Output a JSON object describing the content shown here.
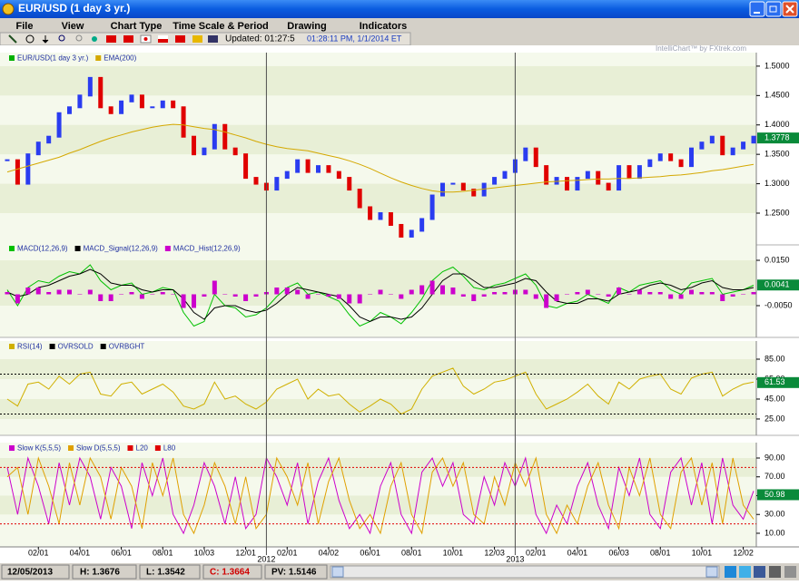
{
  "window": {
    "title": "EUR/USD (1 day  3 yr.)"
  },
  "menu": [
    "File",
    "View",
    "Chart Type",
    "Time Scale & Period",
    "Drawing",
    "Indicators"
  ],
  "toolbar": {
    "updated": "Updated: 01:27:5",
    "time": "01:28:11 PM, 1/1/2014 ET"
  },
  "watermark": "IntelliChart™ by FXtrek.com",
  "status": {
    "date": "12/05/2013",
    "high": "H: 1.3676",
    "low": "L: 1.3542",
    "close": "C: 1.3664",
    "pv": "PV: 1.5146"
  },
  "chart_data": [
    {
      "type": "line",
      "ylim": [
        1.196,
        1.523
      ],
      "yticks": [
        {
          "value": 1.5,
          "label": "1.5000"
        },
        {
          "value": 1.45,
          "label": "1.4500"
        },
        {
          "value": 1.4,
          "label": "1.4000"
        },
        {
          "value": 1.35,
          "label": "1.3500"
        },
        {
          "value": 1.3,
          "label": "1.3000"
        },
        {
          "value": 1.25,
          "label": "1.2500"
        }
      ],
      "last_value": 1.3778,
      "series": [
        {
          "name": "EUR/USD(1 day 3 yr.)",
          "color": "#00b000",
          "style": "candle",
          "up_color": "#2a3cf0",
          "down_color": "#e00000",
          "values": [
            1.34,
            1.3,
            1.35,
            1.37,
            1.38,
            1.42,
            1.43,
            1.45,
            1.48,
            1.43,
            1.42,
            1.44,
            1.45,
            1.43,
            1.43,
            1.44,
            1.43,
            1.38,
            1.35,
            1.36,
            1.4,
            1.36,
            1.35,
            1.31,
            1.3,
            1.29,
            1.31,
            1.32,
            1.34,
            1.32,
            1.33,
            1.32,
            1.31,
            1.29,
            1.26,
            1.24,
            1.25,
            1.23,
            1.21,
            1.22,
            1.24,
            1.28,
            1.3,
            1.3,
            1.29,
            1.28,
            1.3,
            1.31,
            1.32,
            1.34,
            1.36,
            1.33,
            1.3,
            1.31,
            1.29,
            1.31,
            1.32,
            1.3,
            1.29,
            1.33,
            1.31,
            1.33,
            1.34,
            1.35,
            1.34,
            1.33,
            1.36,
            1.37,
            1.38,
            1.35,
            1.36,
            1.37,
            1.38
          ]
        },
        {
          "name": "EMA(200)",
          "color": "#d4a800",
          "style": "line",
          "values": [
            1.32,
            1.325,
            1.33,
            1.335,
            1.34,
            1.345,
            1.352,
            1.358,
            1.365,
            1.372,
            1.378,
            1.383,
            1.388,
            1.392,
            1.396,
            1.399,
            1.401,
            1.4,
            1.397,
            1.394,
            1.392,
            1.388,
            1.383,
            1.378,
            1.372,
            1.367,
            1.363,
            1.36,
            1.358,
            1.356,
            1.352,
            1.348,
            1.344,
            1.339,
            1.333,
            1.326,
            1.318,
            1.31,
            1.303,
            1.297,
            1.292,
            1.288,
            1.286,
            1.286,
            1.287,
            1.289,
            1.291,
            1.293,
            1.295,
            1.297,
            1.299,
            1.301,
            1.303,
            1.304,
            1.305,
            1.306,
            1.307,
            1.308,
            1.308,
            1.309,
            1.309,
            1.31,
            1.311,
            1.312,
            1.314,
            1.315,
            1.317,
            1.319,
            1.322,
            1.324,
            1.327,
            1.33,
            1.333
          ]
        }
      ]
    },
    {
      "type": "line",
      "ylim": [
        -0.019,
        0.0226
      ],
      "yticks": [
        {
          "value": 0.015,
          "label": "0.0150"
        },
        {
          "value": -0.005,
          "label": "-0.0050"
        }
      ],
      "last_value": 0.0041,
      "series": [
        {
          "name": "MACD(12,26,9)",
          "color": "#00c000",
          "style": "line",
          "values": [
            0.002,
            -0.005,
            0.003,
            0.006,
            0.005,
            0.008,
            0.01,
            0.009,
            0.013,
            0.006,
            0.002,
            0.004,
            0.005,
            0,
            0.001,
            0.003,
            0.002,
            -0.008,
            -0.014,
            -0.012,
            0,
            -0.005,
            -0.006,
            -0.01,
            -0.009,
            -0.006,
            -0.001,
            0.003,
            0.005,
            0,
            0.001,
            -0.001,
            -0.003,
            -0.009,
            -0.014,
            -0.012,
            -0.008,
            -0.01,
            -0.013,
            -0.008,
            -0.002,
            0.006,
            0.01,
            0.012,
            0.008,
            0.003,
            0.002,
            0.004,
            0.005,
            0.007,
            0.009,
            0.004,
            -0.005,
            -0.006,
            -0.004,
            -0.003,
            0,
            -0.002,
            -0.004,
            0.003,
            0.001,
            0.004,
            0.005,
            0.006,
            0.002,
            0,
            0.005,
            0.006,
            0.007,
            0,
            0.001,
            0.002,
            0.004
          ]
        },
        {
          "name": "MACD_Signal(12,26,9)",
          "color": "#000000",
          "style": "line",
          "values": [
            0.001,
            -0.001,
            0,
            0.003,
            0.004,
            0.006,
            0.008,
            0.009,
            0.011,
            0.009,
            0.005,
            0.004,
            0.004,
            0.002,
            0.001,
            0.002,
            0.002,
            -0.002,
            -0.008,
            -0.011,
            -0.006,
            -0.005,
            -0.005,
            -0.007,
            -0.008,
            -0.007,
            -0.004,
            0,
            0.003,
            0.002,
            0.001,
            0,
            -0.001,
            -0.005,
            -0.01,
            -0.012,
            -0.01,
            -0.01,
            -0.011,
            -0.01,
            -0.006,
            0,
            0.006,
            0.009,
            0.009,
            0.006,
            0.003,
            0.003,
            0.004,
            0.005,
            0.007,
            0.006,
            0.001,
            -0.003,
            -0.004,
            -0.004,
            -0.002,
            -0.002,
            -0.003,
            0,
            0.001,
            0.002,
            0.004,
            0.005,
            0.004,
            0.002,
            0.003,
            0.005,
            0.006,
            0.003,
            0.002,
            0.002,
            0.003
          ]
        },
        {
          "name": "MACD_Hist(12,26,9)",
          "color": "#cc00cc",
          "style": "histogram",
          "values": [
            0.001,
            -0.004,
            0.003,
            0.003,
            0.001,
            0.002,
            0.002,
            0,
            0.002,
            -0.003,
            -0.003,
            0,
            0.001,
            -0.002,
            0,
            0.001,
            0,
            -0.006,
            -0.006,
            -0.001,
            0.006,
            0,
            -0.001,
            -0.003,
            -0.001,
            0.001,
            0.003,
            0.003,
            0.002,
            -0.002,
            0,
            -0.001,
            -0.002,
            -0.004,
            -0.004,
            0,
            0.002,
            0,
            -0.002,
            0.002,
            0.004,
            0.006,
            0.004,
            0.003,
            -0.001,
            -0.003,
            -0.001,
            0.001,
            0.001,
            0.002,
            0.002,
            -0.002,
            -0.006,
            -0.003,
            0,
            0.001,
            0.002,
            0,
            -0.001,
            0.003,
            0,
            0.002,
            0.001,
            0.001,
            -0.002,
            -0.002,
            0.002,
            0.001,
            0.001,
            -0.003,
            -0.001,
            0,
            0.001
          ]
        }
      ]
    },
    {
      "type": "line",
      "ylim": [
        8.6,
        103.2
      ],
      "yticks": [
        {
          "value": 85,
          "label": "85.00"
        },
        {
          "value": 65,
          "label": "65.00"
        },
        {
          "value": 45,
          "label": "45.00"
        },
        {
          "value": 25,
          "label": "25.00"
        }
      ],
      "last_value": 61.53,
      "series": [
        {
          "name": "RSI(14)",
          "color": "#d0b000",
          "style": "line",
          "values": [
            45,
            38,
            60,
            62,
            55,
            68,
            60,
            70,
            72,
            50,
            48,
            60,
            62,
            50,
            55,
            60,
            52,
            38,
            35,
            40,
            62,
            45,
            48,
            40,
            35,
            42,
            55,
            60,
            65,
            45,
            55,
            48,
            50,
            40,
            32,
            38,
            45,
            40,
            30,
            35,
            55,
            68,
            72,
            76,
            58,
            50,
            55,
            62,
            64,
            68,
            72,
            50,
            35,
            40,
            45,
            52,
            60,
            48,
            40,
            62,
            55,
            65,
            68,
            70,
            55,
            50,
            66,
            70,
            72,
            48,
            55,
            60,
            62
          ]
        },
        {
          "name": "OVRSOLD",
          "color": "#000000",
          "style": "level",
          "level": 30
        },
        {
          "name": "OVRBGHT",
          "color": "#000000",
          "style": "level",
          "level": 70
        }
      ]
    },
    {
      "type": "line",
      "ylim": [
        -4.5,
        106.4
      ],
      "yticks": [
        {
          "value": 90,
          "label": "90.00"
        },
        {
          "value": 70,
          "label": "70.00"
        },
        {
          "value": 50,
          "label": "50.00"
        },
        {
          "value": 30,
          "label": "30.00"
        },
        {
          "value": 10,
          "label": "10.00"
        }
      ],
      "last_value": 50.98,
      "categories": [
        null,
        null,
        null,
        "02/01",
        null,
        null,
        null,
        "04/01",
        null,
        null,
        null,
        "06/01",
        null,
        null,
        null,
        "08/01",
        null,
        null,
        null,
        "10/03",
        null,
        null,
        null,
        "12/01",
        null,
        null,
        null,
        "02/01",
        null,
        null,
        null,
        "04/02",
        null,
        null,
        null,
        "06/01",
        null,
        null,
        null,
        "08/01",
        null,
        null,
        null,
        "10/01",
        null,
        null,
        null,
        "12/03",
        null,
        null,
        null,
        "02/01",
        null,
        null,
        null,
        "04/01",
        null,
        null,
        null,
        "06/03",
        null,
        null,
        null,
        "08/01",
        null,
        null,
        null,
        "10/01",
        null,
        null,
        null,
        "12/02",
        null
      ],
      "xticks": [
        {
          "value": 25,
          "label": "2012"
        },
        {
          "value": 49,
          "label": "2013"
        }
      ],
      "series": [
        {
          "name": "Slow K(5,5,5)",
          "color": "#cc00cc",
          "style": "line",
          "values": [
            80,
            30,
            90,
            60,
            20,
            85,
            40,
            90,
            70,
            25,
            80,
            60,
            15,
            85,
            50,
            90,
            30,
            10,
            40,
            85,
            60,
            20,
            70,
            15,
            30,
            90,
            70,
            40,
            85,
            20,
            65,
            90,
            45,
            15,
            30,
            10,
            60,
            85,
            30,
            10,
            75,
            90,
            60,
            85,
            30,
            20,
            70,
            40,
            85,
            60,
            90,
            30,
            10,
            40,
            20,
            60,
            85,
            40,
            15,
            80,
            50,
            90,
            30,
            15,
            75,
            90,
            40,
            85,
            20,
            90,
            40,
            25,
            55
          ]
        },
        {
          "name": "Slow D(5,5,5)",
          "color": "#e0a000",
          "style": "line",
          "values": [
            70,
            80,
            30,
            90,
            60,
            20,
            85,
            40,
            90,
            70,
            25,
            80,
            60,
            15,
            85,
            50,
            90,
            30,
            10,
            40,
            85,
            60,
            20,
            70,
            15,
            30,
            90,
            70,
            40,
            85,
            20,
            65,
            90,
            45,
            15,
            30,
            10,
            60,
            85,
            30,
            10,
            75,
            90,
            60,
            85,
            30,
            20,
            70,
            40,
            85,
            60,
            90,
            30,
            10,
            40,
            20,
            60,
            85,
            40,
            15,
            80,
            50,
            90,
            30,
            15,
            75,
            90,
            40,
            85,
            20,
            90,
            40,
            25
          ]
        },
        {
          "name": "L20",
          "color": "#e00000",
          "style": "level",
          "level": 20
        },
        {
          "name": "L80",
          "color": "#e00000",
          "style": "level",
          "level": 80
        }
      ]
    }
  ]
}
